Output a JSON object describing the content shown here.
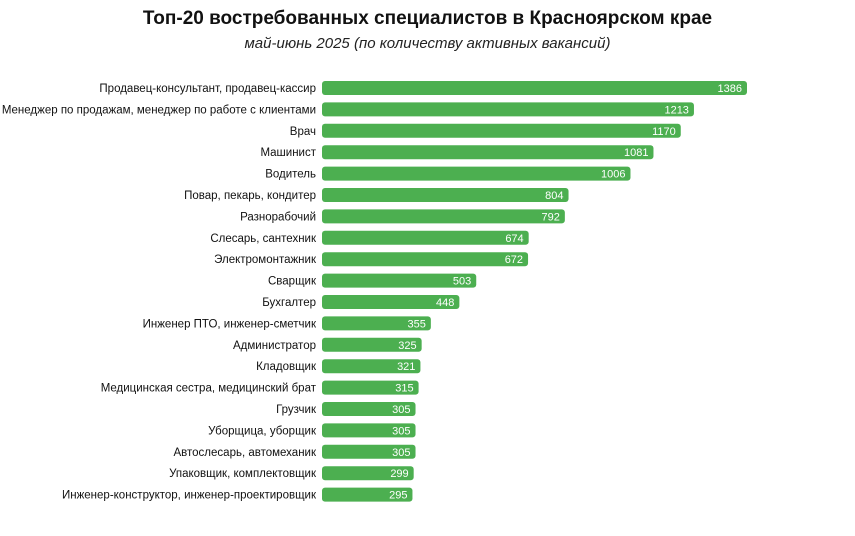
{
  "chart_data": {
    "type": "bar",
    "orientation": "horizontal",
    "title": "Топ-20 востребованных специалистов в Красноярском крае",
    "subtitle": "май-июнь 2025 (по количеству активных вакансий)",
    "categories": [
      "Продавец-консультант, продавец-кассир",
      "Менеджер по продажам, менеджер по работе с клиентами",
      "Врач",
      "Машинист",
      "Водитель",
      "Повар, пекарь, кондитер",
      "Разнорабочий",
      "Слесарь, сантехник",
      "Электромонтажник",
      "Сварщик",
      "Бухгалтер",
      "Инженер ПТО, инженер-сметчик",
      "Администратор",
      "Кладовщик",
      "Медицинская сестра, медицинский брат",
      "Грузчик",
      "Уборщица, уборщик",
      "Автослесарь, автомеханик",
      "Упаковщик, комплектовщик",
      "Инженер-конструктор, инженер-проектировщик"
    ],
    "values": [
      1386,
      1213,
      1170,
      1081,
      1006,
      804,
      792,
      674,
      672,
      503,
      448,
      355,
      325,
      321,
      315,
      305,
      305,
      305,
      299,
      295
    ],
    "xlim": [
      0,
      1386
    ],
    "grid": false,
    "legend": "none",
    "bar_color": "#4caf50",
    "label_color": "#ffffff"
  }
}
